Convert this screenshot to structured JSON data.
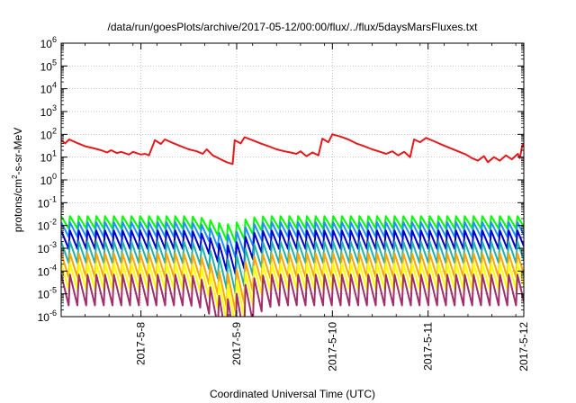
{
  "chart_data": {
    "type": "line",
    "title": "/data/run/goesPlots/archive/2017-05-12/00:00/flux/../flux/5daysMarsFluxes.txt",
    "xlabel": "Coordinated Universal Time (UTC)",
    "ylabel_prefix": "protons/cm",
    "ylabel_sup": "2",
    "ylabel_suffix": "-s-sr-MeV",
    "y_scale": "log",
    "ylim": [
      1e-06,
      1000000
    ],
    "xlim": [
      "2017-05-07 04:00",
      "2017-05-12 00:00"
    ],
    "x_ticks": [
      {
        "label": "2017-5-8",
        "date": "2017-05-08 00:00"
      },
      {
        "label": "2017-5-9",
        "date": "2017-05-09 00:00"
      },
      {
        "label": "2017-5-10",
        "date": "2017-05-10 00:00"
      },
      {
        "label": "2017-5-11",
        "date": "2017-05-11 00:00"
      },
      {
        "label": "2017-5-12",
        "date": "2017-05-12 00:00"
      }
    ],
    "y_ticks": [
      {
        "base": "10",
        "exp": "6",
        "value": 1000000
      },
      {
        "base": "10",
        "exp": "5",
        "value": 100000
      },
      {
        "base": "10",
        "exp": "4",
        "value": 10000
      },
      {
        "base": "10",
        "exp": "3",
        "value": 1000
      },
      {
        "base": "10",
        "exp": "2",
        "value": 100
      },
      {
        "base": "10",
        "exp": "1",
        "value": 10
      },
      {
        "base": "10",
        "exp": "0",
        "value": 1
      },
      {
        "base": "10",
        "exp": "-1",
        "value": 0.1
      },
      {
        "base": "10",
        "exp": "-2",
        "value": 0.01
      },
      {
        "base": "10",
        "exp": "-3",
        "value": 0.001
      },
      {
        "base": "10",
        "exp": "-4",
        "value": 0.0001
      },
      {
        "base": "10",
        "exp": "-5",
        "value": 1e-05
      },
      {
        "base": "10",
        "exp": "-6",
        "value": 1e-06
      }
    ],
    "grid": true,
    "series": [
      {
        "color": "#e41a1c",
        "points": [
          [
            "2017-05-07 04:00",
            55
          ],
          [
            "2017-05-07 05:00",
            40
          ],
          [
            "2017-05-07 06:00",
            60
          ],
          [
            "2017-05-07 08:00",
            42
          ],
          [
            "2017-05-07 10:00",
            30
          ],
          [
            "2017-05-07 12:00",
            25
          ],
          [
            "2017-05-07 14:00",
            20
          ],
          [
            "2017-05-07 15:30",
            16
          ],
          [
            "2017-05-07 16:30",
            20
          ],
          [
            "2017-05-07 18:00",
            15
          ],
          [
            "2017-05-07 19:00",
            17
          ],
          [
            "2017-05-07 21:00",
            13
          ],
          [
            "2017-05-07 22:00",
            17
          ],
          [
            "2017-05-08 00:00",
            13
          ],
          [
            "2017-05-08 01:00",
            14
          ],
          [
            "2017-05-08 02:00",
            12
          ],
          [
            "2017-05-08 03:30",
            55
          ],
          [
            "2017-05-08 05:00",
            38
          ],
          [
            "2017-05-08 06:00",
            60
          ],
          [
            "2017-05-08 08:00",
            42
          ],
          [
            "2017-05-08 10:00",
            30
          ],
          [
            "2017-05-08 12:00",
            22
          ],
          [
            "2017-05-08 14:00",
            18
          ],
          [
            "2017-05-08 15:30",
            14
          ],
          [
            "2017-05-08 16:30",
            22
          ],
          [
            "2017-05-08 18:00",
            12
          ],
          [
            "2017-05-08 20:00",
            8
          ],
          [
            "2017-05-08 21:30",
            6
          ],
          [
            "2017-05-08 23:00",
            5
          ],
          [
            "2017-05-08 23:30",
            55
          ],
          [
            "2017-05-09 01:00",
            40
          ],
          [
            "2017-05-09 02:00",
            75
          ],
          [
            "2017-05-09 04:00",
            55
          ],
          [
            "2017-05-09 06:00",
            40
          ],
          [
            "2017-05-09 08:00",
            30
          ],
          [
            "2017-05-09 10:00",
            22
          ],
          [
            "2017-05-09 12:00",
            18
          ],
          [
            "2017-05-09 13:30",
            16
          ],
          [
            "2017-05-09 15:00",
            14
          ],
          [
            "2017-05-09 16:00",
            18
          ],
          [
            "2017-05-09 17:30",
            11
          ],
          [
            "2017-05-09 19:00",
            16
          ],
          [
            "2017-05-09 20:30",
            12
          ],
          [
            "2017-05-09 21:30",
            65
          ],
          [
            "2017-05-09 23:00",
            45
          ],
          [
            "2017-05-10 00:00",
            100
          ],
          [
            "2017-05-10 02:00",
            80
          ],
          [
            "2017-05-10 04:00",
            60
          ],
          [
            "2017-05-10 06:00",
            40
          ],
          [
            "2017-05-10 08:00",
            30
          ],
          [
            "2017-05-10 10:00",
            22
          ],
          [
            "2017-05-10 12:00",
            17
          ],
          [
            "2017-05-10 13:30",
            14
          ],
          [
            "2017-05-10 15:00",
            18
          ],
          [
            "2017-05-10 16:30",
            12
          ],
          [
            "2017-05-10 18:00",
            17
          ],
          [
            "2017-05-10 19:30",
            10
          ],
          [
            "2017-05-10 20:30",
            60
          ],
          [
            "2017-05-10 22:00",
            45
          ],
          [
            "2017-05-10 23:30",
            70
          ],
          [
            "2017-05-11 01:30",
            50
          ],
          [
            "2017-05-11 03:30",
            35
          ],
          [
            "2017-05-11 05:30",
            25
          ],
          [
            "2017-05-11 07:30",
            18
          ],
          [
            "2017-05-11 09:30",
            13
          ],
          [
            "2017-05-11 11:00",
            9
          ],
          [
            "2017-05-11 12:30",
            7
          ],
          [
            "2017-05-11 14:00",
            11
          ],
          [
            "2017-05-11 15:00",
            6
          ],
          [
            "2017-05-11 16:30",
            10
          ],
          [
            "2017-05-11 18:00",
            7
          ],
          [
            "2017-05-11 19:30",
            12
          ],
          [
            "2017-05-11 21:00",
            8
          ],
          [
            "2017-05-11 22:30",
            14
          ],
          [
            "2017-05-11 23:00",
            9
          ],
          [
            "2017-05-11 23:40",
            35
          ],
          [
            "2017-05-12 00:00",
            28
          ]
        ]
      },
      {
        "color": "#00ff00",
        "base": 0.026,
        "amp": 0.55,
        "dip_depth": 0.6
      },
      {
        "color": "#1e90ff",
        "base": 0.014,
        "amp": 0.65,
        "dip_depth": 0.9
      },
      {
        "color": "#0000cd",
        "base": 0.006,
        "amp": 0.8,
        "dip_depth": 1.1
      },
      {
        "color": "#20b2aa",
        "base": 0.002,
        "amp": 0.95,
        "dip_depth": 1.3
      },
      {
        "color": "#ffa500",
        "base": 0.0006,
        "amp": 1.05,
        "dip_depth": 1.5
      },
      {
        "color": "#ffff00",
        "base": 0.00022,
        "amp": 1.15,
        "dip_depth": 1.6
      },
      {
        "color": "#a0306b",
        "base": 7e-05,
        "amp": 1.35,
        "dip_depth": 1.8
      }
    ]
  }
}
